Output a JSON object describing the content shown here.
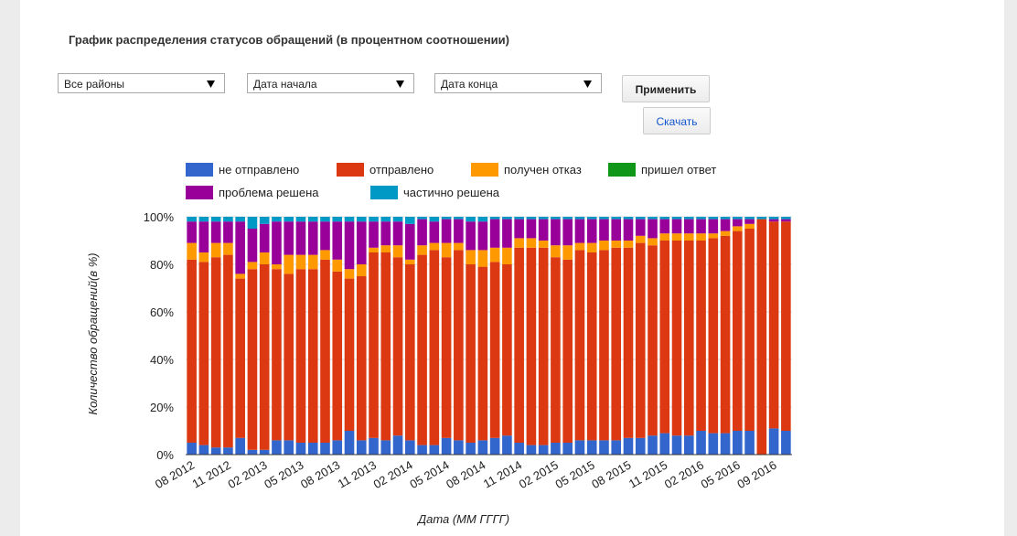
{
  "ui": {
    "title": "График распределения статусов обращений (в процентном соотношении)",
    "filters": [
      "Все районы",
      "Дата начала",
      "Дата конца"
    ],
    "buttons": [
      "Применить",
      "Скачать"
    ]
  },
  "chart_data": {
    "type": "bar",
    "stacked": true,
    "ylabel": "Количество обращений(в %)",
    "xlabel": "Дата (ММ ГГГГ)",
    "categories": [
      "08 2012",
      null,
      null,
      "11 2012",
      null,
      null,
      "02 2013",
      null,
      null,
      "05 2013",
      null,
      null,
      "08 2013",
      null,
      null,
      "11 2013",
      null,
      null,
      "02 2014",
      null,
      null,
      "05 2014",
      null,
      null,
      "08 2014",
      null,
      null,
      "11 2014",
      null,
      null,
      "02 2015",
      null,
      null,
      "05 2015",
      null,
      null,
      "08 2015",
      null,
      null,
      "11 2015",
      null,
      null,
      "02 2016",
      null,
      null,
      "05 2016",
      null,
      null,
      "09 2016",
      null
    ],
    "series": [
      {
        "name": "не отправлено",
        "color": "#3366cc",
        "values": [
          5,
          4,
          3,
          3,
          7,
          2,
          2,
          6,
          6,
          5,
          5,
          5,
          6,
          10,
          6,
          7,
          6,
          8,
          6,
          4,
          4,
          7,
          6,
          5,
          6,
          7,
          8,
          5,
          4,
          4,
          5,
          5,
          6,
          6,
          6,
          6,
          7,
          7,
          8,
          9,
          8,
          8,
          10,
          9,
          9,
          10,
          10,
          0,
          11,
          10
        ]
      },
      {
        "name": "отправлено",
        "color": "#dc3912",
        "values": [
          77,
          77,
          80,
          81,
          67,
          76,
          78,
          72,
          70,
          73,
          73,
          77,
          71,
          64,
          69,
          78,
          79,
          75,
          74,
          80,
          82,
          76,
          80,
          75,
          73,
          74,
          72,
          82,
          83,
          83,
          78,
          77,
          80,
          79,
          80,
          81,
          80,
          82,
          80,
          81,
          82,
          82,
          80,
          82,
          83,
          84,
          85,
          99,
          87,
          88
        ]
      },
      {
        "name": "получен отказ",
        "color": "#ff9900",
        "values": [
          7,
          4,
          6,
          5,
          2,
          3,
          5,
          2,
          8,
          6,
          6,
          4,
          5,
          4,
          5,
          2,
          3,
          5,
          2,
          4,
          3,
          6,
          3,
          6,
          7,
          6,
          7,
          4,
          4,
          3,
          5,
          6,
          3,
          4,
          4,
          3,
          3,
          3,
          3,
          3,
          3,
          3,
          3,
          2,
          2,
          2,
          2,
          0,
          0,
          0
        ]
      },
      {
        "name": "пришел ответ",
        "color": "#109618",
        "values": [
          0,
          0,
          0,
          0,
          0,
          0,
          0,
          0,
          0,
          0,
          0,
          0,
          0,
          0,
          0,
          0,
          0,
          0,
          0,
          0,
          0,
          0,
          0,
          0,
          0,
          0,
          0,
          0,
          0,
          0,
          0,
          0,
          0,
          0,
          0,
          0,
          0,
          0,
          0,
          0,
          0,
          0,
          0,
          0,
          0,
          0,
          0,
          0,
          0,
          0
        ]
      },
      {
        "name": "проблема решена",
        "color": "#990099",
        "values": [
          9,
          13,
          9,
          9,
          22,
          14,
          12,
          18,
          14,
          14,
          14,
          12,
          16,
          20,
          18,
          11,
          10,
          10,
          15,
          11,
          9,
          10,
          10,
          12,
          12,
          12,
          12,
          8,
          8,
          9,
          11,
          11,
          10,
          10,
          9,
          9,
          9,
          7,
          8,
          6,
          6,
          6,
          6,
          6,
          5,
          3,
          2,
          0,
          1,
          1
        ]
      },
      {
        "name": "частично решена",
        "color": "#0099c6",
        "values": [
          2,
          2,
          2,
          2,
          2,
          5,
          3,
          2,
          2,
          2,
          2,
          2,
          2,
          2,
          2,
          2,
          2,
          2,
          3,
          1,
          2,
          1,
          1,
          2,
          2,
          1,
          1,
          1,
          1,
          1,
          1,
          1,
          1,
          1,
          1,
          1,
          1,
          1,
          1,
          1,
          1,
          1,
          1,
          1,
          1,
          1,
          1,
          1,
          1,
          1
        ]
      }
    ],
    "ylim": [
      0,
      100
    ],
    "yticks": [
      {
        "value": 0,
        "label": "0%"
      },
      {
        "value": 20,
        "label": "20%"
      },
      {
        "value": 40,
        "label": "40%"
      },
      {
        "value": 60,
        "label": "60%"
      },
      {
        "value": 80,
        "label": "80%"
      },
      {
        "value": 100,
        "label": "100%"
      }
    ],
    "grid": true
  }
}
